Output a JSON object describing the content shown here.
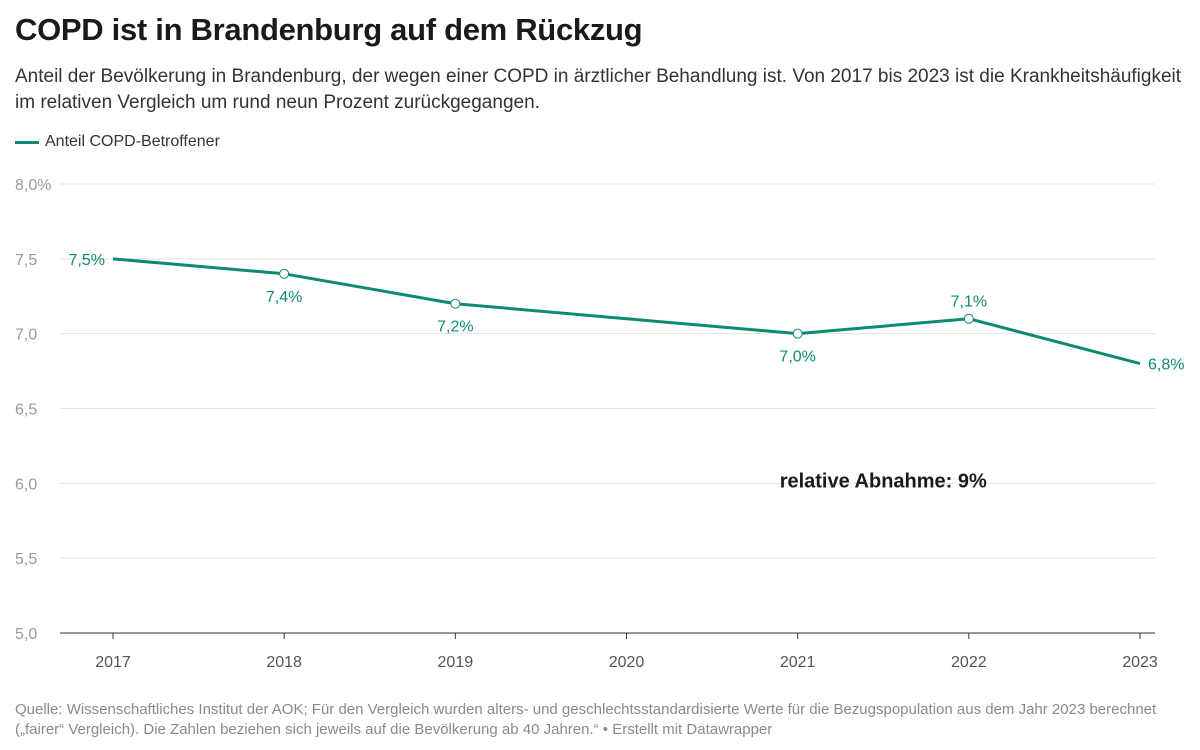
{
  "header": {
    "title": "COPD ist in Brandenburg auf dem Rückzug",
    "subtitle": "Anteil der Bevölkerung in Brandenburg, der wegen einer COPD in ärztlicher Behandlung ist. Von 2017 bis 2023 ist die Krankheitshäufigkeit im relativen Vergleich um rund neun Prozent zurückgegangen."
  },
  "footer": {
    "source": "Quelle: Wissenschaftliches Institut der AOK; Für den Vergleich wurden alters- und geschlechtsstandardisierte Werte für die Bezugspopulation aus dem Jahr 2023 berechnet („fairer“ Vergleich). Die Zahlen beziehen sich jeweils auf die Bevölkerung ab 40 Jahren.“ • Erstellt mit Datawrapper"
  },
  "colors": {
    "series": "#0f8a72",
    "grid": "#e3e3e3",
    "tick": "#999999",
    "axis": "#333333"
  },
  "chart_data": {
    "type": "line",
    "title": "",
    "xlabel": "",
    "ylabel": "",
    "x": [
      2017,
      2018,
      2019,
      2020,
      2021,
      2022,
      2023
    ],
    "ylim": [
      5.0,
      8.0
    ],
    "y_ticks": [
      5.0,
      5.5,
      6.0,
      6.5,
      7.0,
      7.5,
      8.0
    ],
    "y_tick_labels": [
      "5,0",
      "5,5",
      "6,0",
      "6,5",
      "7,0",
      "7,5",
      "8,0%"
    ],
    "x_tick_labels": [
      "2017",
      "2018",
      "2019",
      "2020",
      "2021",
      "2022",
      "2023"
    ],
    "grid": true,
    "legend": "top-left",
    "series": [
      {
        "name": "Anteil COPD-Betroffener",
        "values": [
          7.5,
          7.4,
          7.2,
          7.1,
          7.0,
          7.1,
          6.8
        ],
        "labels": [
          "7,5%",
          "7,4%",
          "7,2%",
          null,
          "7,0%",
          "7,1%",
          "6,8%"
        ]
      }
    ],
    "annotation": {
      "text": "relative Abnahme: 9%",
      "x": 2021.5,
      "y": 6.0
    }
  }
}
